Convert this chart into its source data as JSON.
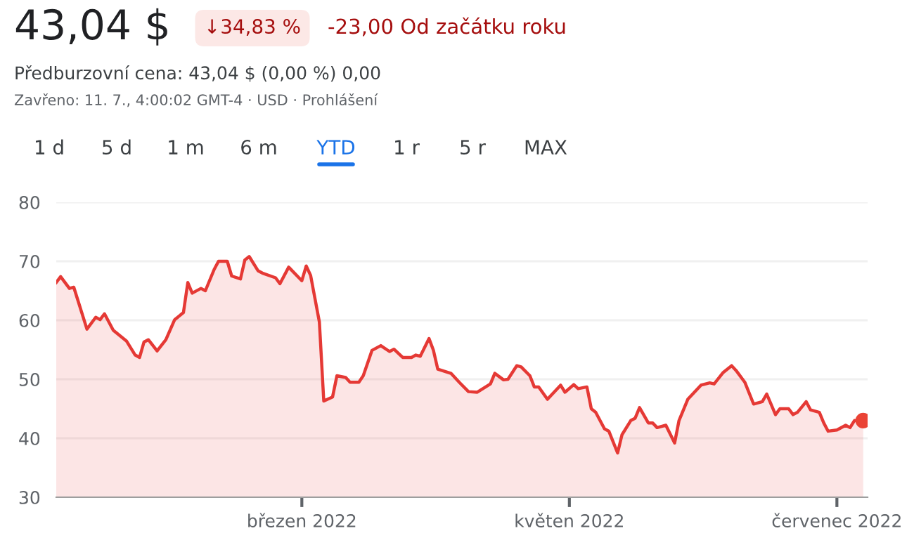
{
  "chart_data": {
    "type": "area",
    "title": "43,04 $",
    "subtitle": "Předburzovní cena: 43,04 $ (0,00 %) 0,00",
    "annotations": [
      "↓34,83 %",
      "-23,00 Od začátku roku",
      "Zavřeno: 11. 7., 4:00:02 GMT-4 · USD · Prohlášení",
      "1 d",
      "5 d",
      "1 m",
      "6 m",
      "YTD",
      "1 r",
      "5 r",
      "MAX"
    ],
    "series": [
      {
        "color": "#e53935",
        "x": [
          "2022-01-04",
          "2022-01-05",
          "2022-01-07",
          "2022-01-08",
          "2022-01-11",
          "2022-01-13",
          "2022-01-14",
          "2022-01-15",
          "2022-01-17",
          "2022-01-20",
          "2022-01-22",
          "2022-01-23",
          "2022-01-24",
          "2022-01-25",
          "2022-01-27",
          "2022-01-29",
          "2022-01-31",
          "2022-02-02",
          "2022-02-03",
          "2022-02-04",
          "2022-02-06",
          "2022-02-07",
          "2022-02-09",
          "2022-02-10",
          "2022-02-12",
          "2022-02-13",
          "2022-02-15",
          "2022-02-16",
          "2022-02-17",
          "2022-02-19",
          "2022-02-20",
          "2022-02-23",
          "2022-02-24",
          "2022-02-26",
          "2022-03-01",
          "2022-03-02",
          "2022-03-03",
          "2022-03-05",
          "2022-03-06",
          "2022-03-08",
          "2022-03-09",
          "2022-03-11",
          "2022-03-12",
          "2022-03-14",
          "2022-03-15",
          "2022-03-17",
          "2022-03-19",
          "2022-03-21",
          "2022-03-22",
          "2022-03-24",
          "2022-03-26",
          "2022-03-27",
          "2022-03-28",
          "2022-03-30",
          "2022-03-31",
          "2022-04-01",
          "2022-04-04",
          "2022-04-06",
          "2022-04-08",
          "2022-04-10",
          "2022-04-13",
          "2022-04-14",
          "2022-04-16",
          "2022-04-17",
          "2022-04-19",
          "2022-04-20",
          "2022-04-22",
          "2022-04-23",
          "2022-04-24",
          "2022-04-26",
          "2022-04-29",
          "2022-04-30",
          "2022-05-02",
          "2022-05-03",
          "2022-05-05",
          "2022-05-06",
          "2022-05-07",
          "2022-05-09",
          "2022-05-10",
          "2022-05-12",
          "2022-05-13",
          "2022-05-15",
          "2022-05-16",
          "2022-05-17",
          "2022-05-19",
          "2022-05-20",
          "2022-05-21",
          "2022-05-23",
          "2022-05-25",
          "2022-05-26",
          "2022-05-28",
          "2022-05-31",
          "2022-06-02",
          "2022-06-03",
          "2022-06-05",
          "2022-06-07",
          "2022-06-08",
          "2022-06-10",
          "2022-06-12",
          "2022-06-14",
          "2022-06-15",
          "2022-06-17",
          "2022-06-18",
          "2022-06-20",
          "2022-06-21",
          "2022-06-22",
          "2022-06-24",
          "2022-06-25",
          "2022-06-27",
          "2022-06-28",
          "2022-06-29",
          "2022-07-01",
          "2022-07-03",
          "2022-07-04",
          "2022-07-05",
          "2022-07-07"
        ],
        "values": [
          66.4,
          67.4,
          65.4,
          65.6,
          58.5,
          60.5,
          60.1,
          61.1,
          58.3,
          56.5,
          54.1,
          53.7,
          56.3,
          56.7,
          54.8,
          56.7,
          60.1,
          61.3,
          66.4,
          64.6,
          65.4,
          65.0,
          68.6,
          70.0,
          70.0,
          67.5,
          67.0,
          70.2,
          70.8,
          68.4,
          68.0,
          67.2,
          66.2,
          69.0,
          66.7,
          69.2,
          67.6,
          59.7,
          46.3,
          47.0,
          50.6,
          50.3,
          49.5,
          49.5,
          50.6,
          54.9,
          55.7,
          54.7,
          55.1,
          53.7,
          53.7,
          54.1,
          53.9,
          56.9,
          54.9,
          51.7,
          51.0,
          49.4,
          47.9,
          47.8,
          49.2,
          51.0,
          49.9,
          50.0,
          52.3,
          52.1,
          50.6,
          48.7,
          48.7,
          46.6,
          49.0,
          47.8,
          49.1,
          48.4,
          48.7,
          45.0,
          44.4,
          41.6,
          41.2,
          37.5,
          40.6,
          43.0,
          43.4,
          45.2,
          42.6,
          42.6,
          41.8,
          42.2,
          39.2,
          43.0,
          46.6,
          49.0,
          49.4,
          49.2,
          51.1,
          52.3,
          51.5,
          49.5,
          45.8,
          46.2,
          47.5,
          44.0,
          45.0,
          45.0,
          44.0,
          44.4,
          46.2,
          44.8,
          44.4,
          42.6,
          41.2,
          41.4,
          42.2,
          41.8,
          43.0,
          43.0
        ]
      },
      {
        "type": "scatter",
        "color": "#ea4335",
        "x": [
          "2022-07-07"
        ],
        "values": [
          43.0
        ]
      }
    ],
    "xlim": [
      "2022-01-04",
      "2022-07-08"
    ],
    "xticks": [
      {
        "value": "2022-03-01",
        "label": "březen 2022"
      },
      {
        "value": "2022-05-01",
        "label": "květen 2022"
      },
      {
        "value": "2022-07-01",
        "label": "červenec 2022"
      }
    ],
    "ylim": [
      30,
      80
    ],
    "yticks": [
      30,
      40,
      50,
      60,
      70,
      80
    ],
    "grid": "y"
  }
}
